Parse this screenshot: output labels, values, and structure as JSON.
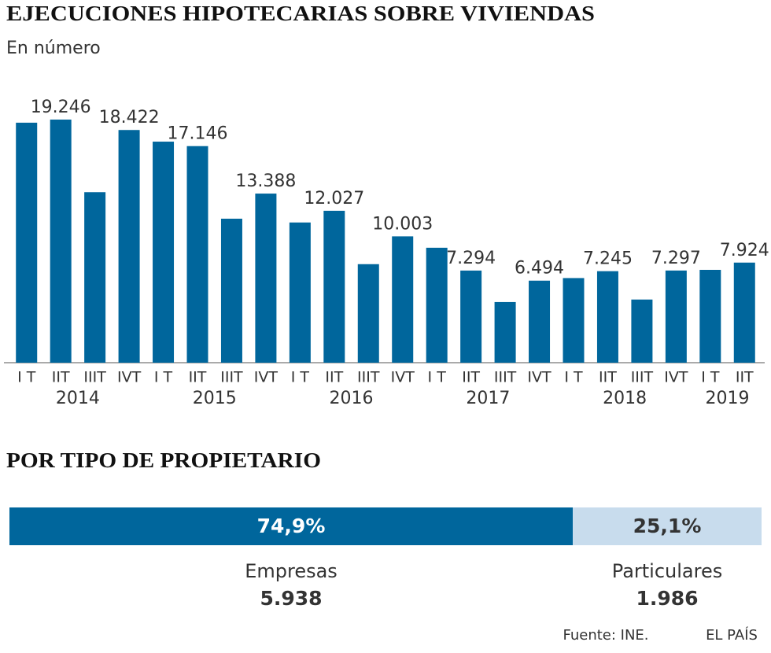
{
  "chart_data": [
    {
      "type": "bar",
      "title": "EJECUCIONES HIPOTECARIAS SOBRE VIVIENDAS",
      "subtitle": "En número",
      "color": "#00669c",
      "categories": [
        "I T",
        "IIT",
        "IIIT",
        "IVT",
        "I T",
        "IIT",
        "IIIT",
        "IVT",
        "I T",
        "IIT",
        "IIIT",
        "IVT",
        "I T",
        "IIT",
        "IIIT",
        "IVT",
        "I T",
        "IIT",
        "IIIT",
        "IVT",
        "I T",
        "IIT"
      ],
      "year_labels": [
        "2014",
        null,
        null,
        null,
        "2015",
        null,
        null,
        null,
        "2016",
        null,
        null,
        null,
        "2017",
        null,
        null,
        null,
        "2018",
        null,
        null,
        null,
        "2019",
        null
      ],
      "values": [
        19000,
        19246,
        13500,
        18422,
        17500,
        17146,
        11400,
        13388,
        11100,
        12027,
        7800,
        10003,
        9100,
        7294,
        4800,
        6494,
        6700,
        7245,
        5000,
        7297,
        7350,
        7924
      ],
      "value_labels": [
        null,
        "19.246",
        null,
        "18.422",
        null,
        "17.146",
        null,
        "13.388",
        null,
        "12.027",
        null,
        "10.003",
        null,
        "7.294",
        null,
        "6.494",
        null,
        "7.245",
        null,
        "7.297",
        null,
        "7.924"
      ]
    },
    {
      "type": "stacked_bar",
      "title": "POR TIPO DE PROPIETARIO",
      "series": [
        {
          "name": "Empresas",
          "color": "#00669c",
          "values": [
            74.9
          ],
          "value_labels": [
            "74,9%"
          ],
          "counts": [
            5938
          ],
          "count_labels": [
            "5.938"
          ]
        },
        {
          "name": "Particulares",
          "color": "#c8dced",
          "values": [
            25.1
          ],
          "value_labels": [
            "25,1%"
          ],
          "counts": [
            1986
          ],
          "count_labels": [
            "1.986"
          ]
        }
      ]
    }
  ],
  "footer": {
    "source": "Fuente: INE.",
    "brand": "EL PAÍS"
  }
}
